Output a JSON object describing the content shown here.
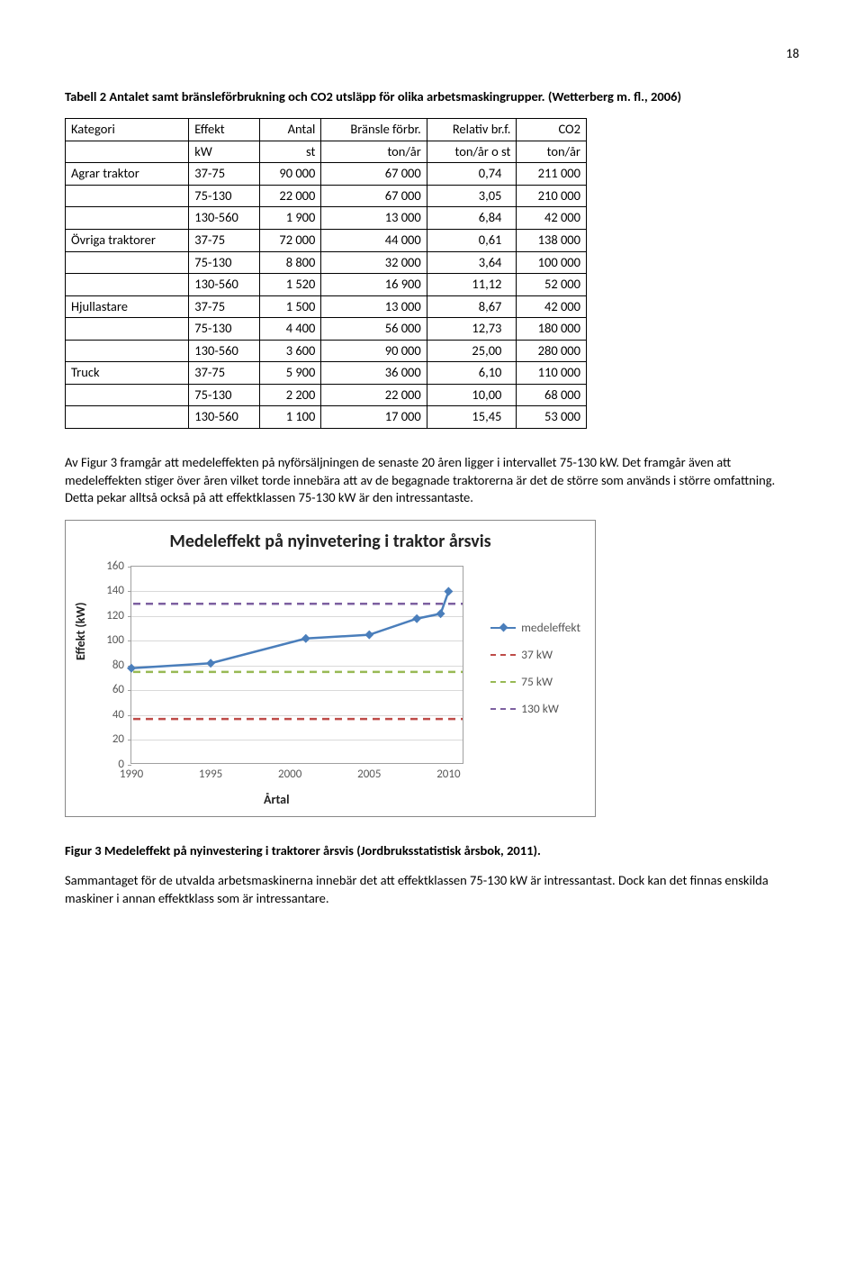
{
  "page_number": "18",
  "table_caption": "Tabell 2 Antalet samt bränsleförbrukning och CO2 utsläpp för olika arbetsmaskingrupper. (Wetterberg m. fl., 2006)",
  "table": {
    "header_row1": [
      "Kategori",
      "Effekt",
      "Antal",
      "Bränsle förbr.",
      "Relativ br.f.",
      "CO2"
    ],
    "header_row2": [
      "",
      "kW",
      "st",
      "ton/år",
      "ton/år o st",
      "ton/år"
    ],
    "rows": [
      [
        "Agrar traktor",
        "37-75",
        "90 000",
        "67 000",
        "0,74",
        "211 000"
      ],
      [
        "",
        "75-130",
        "22 000",
        "67 000",
        "3,05",
        "210 000"
      ],
      [
        "",
        "130-560",
        "1 900",
        "13 000",
        "6,84",
        "42 000"
      ],
      [
        "Övriga traktorer",
        "37-75",
        "72 000",
        "44 000",
        "0,61",
        "138 000"
      ],
      [
        "",
        "75-130",
        "8 800",
        "32 000",
        "3,64",
        "100 000"
      ],
      [
        "",
        "130-560",
        "1 520",
        "16 900",
        "11,12",
        "52 000"
      ],
      [
        "Hjullastare",
        "37-75",
        "1 500",
        "13 000",
        "8,67",
        "42 000"
      ],
      [
        "",
        "75-130",
        "4 400",
        "56 000",
        "12,73",
        "180 000"
      ],
      [
        "",
        "130-560",
        "3 600",
        "90 000",
        "25,00",
        "280 000"
      ],
      [
        "Truck",
        "37-75",
        "5 900",
        "36 000",
        "6,10",
        "110 000"
      ],
      [
        "",
        "75-130",
        "2 200",
        "22 000",
        "10,00",
        "68 000"
      ],
      [
        "",
        "130-560",
        "1 100",
        "17 000",
        "15,45",
        "53 000"
      ]
    ]
  },
  "paragraph1": "Av Figur 3 framgår att medeleffekten på nyförsäljningen de senaste 20 åren ligger i intervallet 75-130 kW. Det framgår även att medeleffekten stiger över åren vilket torde innebära att av de begagnade traktorerna är det de större som används i större omfattning. Detta pekar alltså också på att effektklassen 75-130 kW är den intressantaste.",
  "chart": {
    "type": "line",
    "title": "Medeleffekt på nyinvetering i traktor årsvis",
    "y_label": "Effekt (kW)",
    "x_label": "Årtal",
    "ylim": [
      0,
      160
    ],
    "ytick_step": 20,
    "x_ticks": [
      1990,
      1995,
      2000,
      2005,
      2010
    ],
    "xlim": [
      1990,
      2011
    ],
    "grid_color": "#d9d9d9",
    "border_color": "#888888",
    "axis_color": "#a0a0a0",
    "tick_label_color": "#595959",
    "title_color": "#222222",
    "title_fontsize": 20,
    "series": {
      "medeleffekt": {
        "label": "medeleffekt",
        "color": "#4a7ebb",
        "marker": "diamond",
        "marker_color": "#4a7ebb",
        "line_width": 2.5,
        "points": [
          {
            "x": 1990,
            "y": 78
          },
          {
            "x": 1995,
            "y": 82
          },
          {
            "x": 2001,
            "y": 102
          },
          {
            "x": 2005,
            "y": 105
          },
          {
            "x": 2008,
            "y": 118
          },
          {
            "x": 2009.5,
            "y": 122
          },
          {
            "x": 2010,
            "y": 140
          }
        ]
      }
    },
    "reference_lines": [
      {
        "label": "37 kW",
        "y": 37,
        "color": "#be4b48",
        "dash": "8 6",
        "line_width": 2.5
      },
      {
        "label": "75 kW",
        "y": 75,
        "color": "#98b954",
        "dash": "8 6",
        "line_width": 2.5
      },
      {
        "label": "130 kW",
        "y": 130,
        "color": "#7d60a0",
        "dash": "8 6",
        "line_width": 2.5
      }
    ],
    "legend_order": [
      "medeleffekt",
      "37 kW",
      "75 kW",
      "130 kW"
    ]
  },
  "figure_caption": "Figur 3 Medeleffekt på nyinvestering i traktorer årsvis (Jordbruksstatistisk årsbok, 2011).",
  "paragraph2": "Sammantaget för de utvalda arbetsmaskinerna innebär det att effektklassen 75-130 kW är intressantast. Dock kan det finnas enskilda maskiner i annan effektklass som är intressantare."
}
